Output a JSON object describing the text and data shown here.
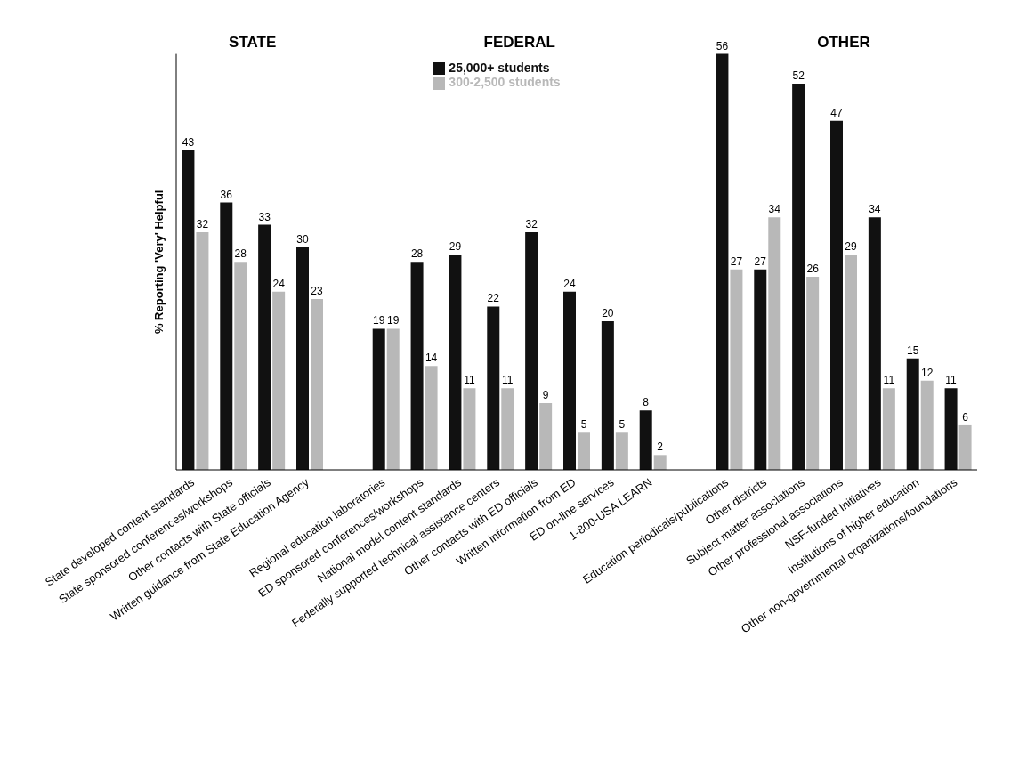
{
  "chart_data": {
    "type": "bar",
    "ylabel": "% Reporting 'Very' Helpful",
    "categories": [
      "State developed content standards",
      "State sponsored conferences/workshops",
      "Other contacts with State officials",
      "Written guidance from State Education Agency",
      null,
      "Regional education laboratories",
      "ED sponsored conferences/workshops",
      "National model content standards",
      "Federally supported technical assistance centers",
      "Other contacts with ED officials",
      "Written information from ED",
      "ED on-line services",
      "1-800-USA LEARN",
      null,
      "Education periodicals/publications",
      "Other districts",
      "Subject matter associations",
      "Other professional associations",
      "NSF-funded Initiatives",
      "Institutions of higher education",
      "Other non-governmental organizations/foundations"
    ],
    "series": [
      {
        "name": "25,000+ students",
        "color": "#111111",
        "values": [
          43,
          36,
          33,
          30,
          null,
          19,
          28,
          29,
          22,
          32,
          24,
          20,
          8,
          null,
          56,
          27,
          52,
          47,
          34,
          15,
          11
        ]
      },
      {
        "name": "300-2,500 students",
        "color": "#b8b8b8",
        "values": [
          32,
          28,
          24,
          23,
          null,
          19,
          14,
          11,
          11,
          9,
          5,
          5,
          2,
          null,
          27,
          34,
          26,
          29,
          11,
          12,
          6
        ]
      }
    ],
    "relative": false,
    "data_labels": true,
    "legend": "top",
    "grid": false,
    "annotations": [
      "STATE",
      "FEDERAL",
      "OTHER"
    ]
  }
}
